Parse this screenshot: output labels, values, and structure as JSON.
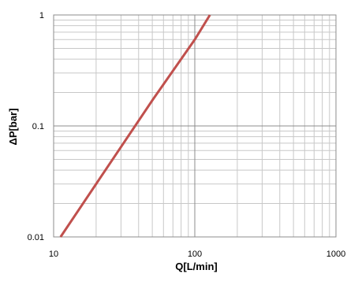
{
  "chart_data": {
    "type": "line",
    "xscale": "log",
    "yscale": "log",
    "xlim": [
      10,
      1000
    ],
    "ylim": [
      0.01,
      1
    ],
    "x_ticks": [
      {
        "value": 10,
        "label": "10"
      },
      {
        "value": 100,
        "label": "100"
      },
      {
        "value": 1000,
        "label": "1000"
      }
    ],
    "y_ticks": [
      {
        "value": 0.01,
        "label": "0.01"
      },
      {
        "value": 0.1,
        "label": "0.1"
      },
      {
        "value": 1,
        "label": "1"
      }
    ],
    "xlabel": "Q[L/min]",
    "ylabel": "ΔP[bar]",
    "grid": {
      "major": true,
      "minor": true
    },
    "series": [
      {
        "color": "#c0504d",
        "points": [
          {
            "x": 11.2,
            "y": 0.01
          },
          {
            "x": 20,
            "y": 0.03
          },
          {
            "x": 50,
            "y": 0.17
          },
          {
            "x": 100,
            "y": 0.6
          },
          {
            "x": 128,
            "y": 1
          }
        ]
      }
    ]
  }
}
